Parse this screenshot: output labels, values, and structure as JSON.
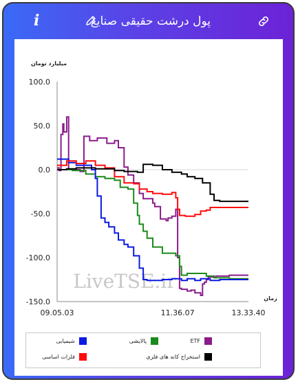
{
  "header": {
    "title": "پول درشت حقیقی صنایع",
    "info_glyph": "i",
    "icons": [
      "info-icon",
      "pencil-icon",
      "link-icon"
    ]
  },
  "watermark": "LiveTSE.ir",
  "chart_data": {
    "type": "line",
    "ylabel": "میلیارد تومان",
    "xlabel": "زمان",
    "ylim": [
      -150,
      100
    ],
    "y_ticks": [
      "100.0",
      "50.0",
      "0.0",
      "-50.0",
      "-100.0",
      "-150.0"
    ],
    "x_ticks": [
      "09.05.03",
      "11.36.07",
      "13.33.40"
    ],
    "grid": "zero-line",
    "legend_position": "bottom",
    "x_domain": [
      0,
      100
    ],
    "series": [
      {
        "name": "ETF",
        "color": "#8b1a8b",
        "points": [
          [
            0,
            2
          ],
          [
            1,
            -1
          ],
          [
            2,
            40
          ],
          [
            3,
            52
          ],
          [
            3.5,
            43
          ],
          [
            5,
            60
          ],
          [
            6,
            0
          ],
          [
            12,
            -2
          ],
          [
            14,
            38
          ],
          [
            17,
            33
          ],
          [
            21,
            36
          ],
          [
            26,
            30
          ],
          [
            30,
            33
          ],
          [
            32,
            25
          ],
          [
            35,
            3
          ],
          [
            37,
            -6
          ],
          [
            40,
            -15
          ],
          [
            43,
            -27
          ],
          [
            45,
            -33
          ],
          [
            50,
            -38
          ],
          [
            51,
            -42
          ],
          [
            54,
            -56
          ],
          [
            57,
            -58
          ],
          [
            58,
            -55
          ],
          [
            60,
            -53
          ],
          [
            62,
            -45
          ],
          [
            63,
            -100
          ],
          [
            64,
            -135
          ],
          [
            65,
            -136
          ],
          [
            68,
            -138
          ],
          [
            70,
            -137
          ],
          [
            72,
            -140
          ],
          [
            75,
            -143
          ],
          [
            76,
            -130
          ],
          [
            77,
            -128
          ],
          [
            78,
            -125
          ],
          [
            79,
            -122
          ],
          [
            83,
            -121
          ],
          [
            87,
            -121
          ],
          [
            90,
            -120
          ],
          [
            94,
            -120
          ],
          [
            100,
            -120
          ]
        ]
      },
      {
        "name": "پالایشی",
        "color": "#1a8a1a",
        "points": [
          [
            0,
            0
          ],
          [
            8,
            -1
          ],
          [
            15,
            -5
          ],
          [
            20,
            -8
          ],
          [
            25,
            -10
          ],
          [
            30,
            -12
          ],
          [
            33,
            -20
          ],
          [
            37,
            -22
          ],
          [
            40,
            -38
          ],
          [
            42,
            -52
          ],
          [
            43,
            -62
          ],
          [
            45,
            -70
          ],
          [
            47,
            -78
          ],
          [
            50,
            -88
          ],
          [
            55,
            -95
          ],
          [
            62,
            -98
          ],
          [
            64,
            -110
          ],
          [
            65,
            -120
          ],
          [
            68,
            -118
          ],
          [
            70,
            -118
          ],
          [
            78,
            -121
          ],
          [
            82,
            -123
          ],
          [
            90,
            -124
          ],
          [
            100,
            -124
          ]
        ]
      },
      {
        "name": "شیمیایی",
        "color": "#0a1ae0",
        "points": [
          [
            0,
            12
          ],
          [
            6,
            8
          ],
          [
            10,
            5
          ],
          [
            15,
            5
          ],
          [
            18,
            0
          ],
          [
            20,
            -10
          ],
          [
            21,
            -30
          ],
          [
            23,
            -55
          ],
          [
            25,
            -60
          ],
          [
            27,
            -65
          ],
          [
            30,
            -72
          ],
          [
            32,
            -80
          ],
          [
            35,
            -85
          ],
          [
            37,
            -88
          ],
          [
            40,
            -98
          ],
          [
            43,
            -112
          ],
          [
            45,
            -125
          ],
          [
            47,
            -126
          ],
          [
            53,
            -126
          ],
          [
            55,
            -125
          ],
          [
            60,
            -124
          ],
          [
            65,
            -126
          ],
          [
            68,
            -124
          ],
          [
            72,
            -126
          ],
          [
            75,
            -124
          ],
          [
            80,
            -126
          ],
          [
            85,
            -125
          ],
          [
            100,
            -125
          ]
        ]
      },
      {
        "name": "فلزات اساسی",
        "color": "#ff0a0a",
        "points": [
          [
            0,
            5
          ],
          [
            5,
            10
          ],
          [
            10,
            7
          ],
          [
            15,
            10
          ],
          [
            20,
            5
          ],
          [
            25,
            2
          ],
          [
            30,
            -8
          ],
          [
            35,
            -15
          ],
          [
            40,
            -16
          ],
          [
            43,
            -22
          ],
          [
            47,
            -25
          ],
          [
            50,
            -27
          ],
          [
            55,
            -28
          ],
          [
            60,
            -26
          ],
          [
            62,
            -32
          ],
          [
            63,
            -45
          ],
          [
            64,
            -52
          ],
          [
            67,
            -53
          ],
          [
            72,
            -51
          ],
          [
            75,
            -47
          ],
          [
            78,
            -46
          ],
          [
            80,
            -43
          ],
          [
            90,
            -43
          ],
          [
            100,
            -43
          ]
        ]
      },
      {
        "name": "استخراج کانه های فلزی",
        "color": "#000000",
        "points": [
          [
            0,
            0
          ],
          [
            5,
            1
          ],
          [
            10,
            2
          ],
          [
            20,
            1
          ],
          [
            30,
            -1
          ],
          [
            35,
            -2
          ],
          [
            42,
            -3
          ],
          [
            45,
            6
          ],
          [
            50,
            5
          ],
          [
            55,
            0
          ],
          [
            60,
            -3
          ],
          [
            65,
            -5
          ],
          [
            68,
            -8
          ],
          [
            72,
            -10
          ],
          [
            76,
            -15
          ],
          [
            80,
            -28
          ],
          [
            82,
            -35
          ],
          [
            85,
            -36
          ],
          [
            100,
            -36
          ]
        ]
      }
    ]
  },
  "legend": {
    "items": [
      {
        "label": "ETF",
        "color": "#8b1a8b"
      },
      {
        "label": "پالایشی",
        "color": "#1a8a1a"
      },
      {
        "label": "شیمیایی",
        "color": "#0a1ae0"
      },
      {
        "label": "استخراج کانه های فلزی",
        "color": "#000000"
      },
      {
        "label": "فلزات اساسی",
        "color": "#ff0a0a"
      }
    ]
  }
}
